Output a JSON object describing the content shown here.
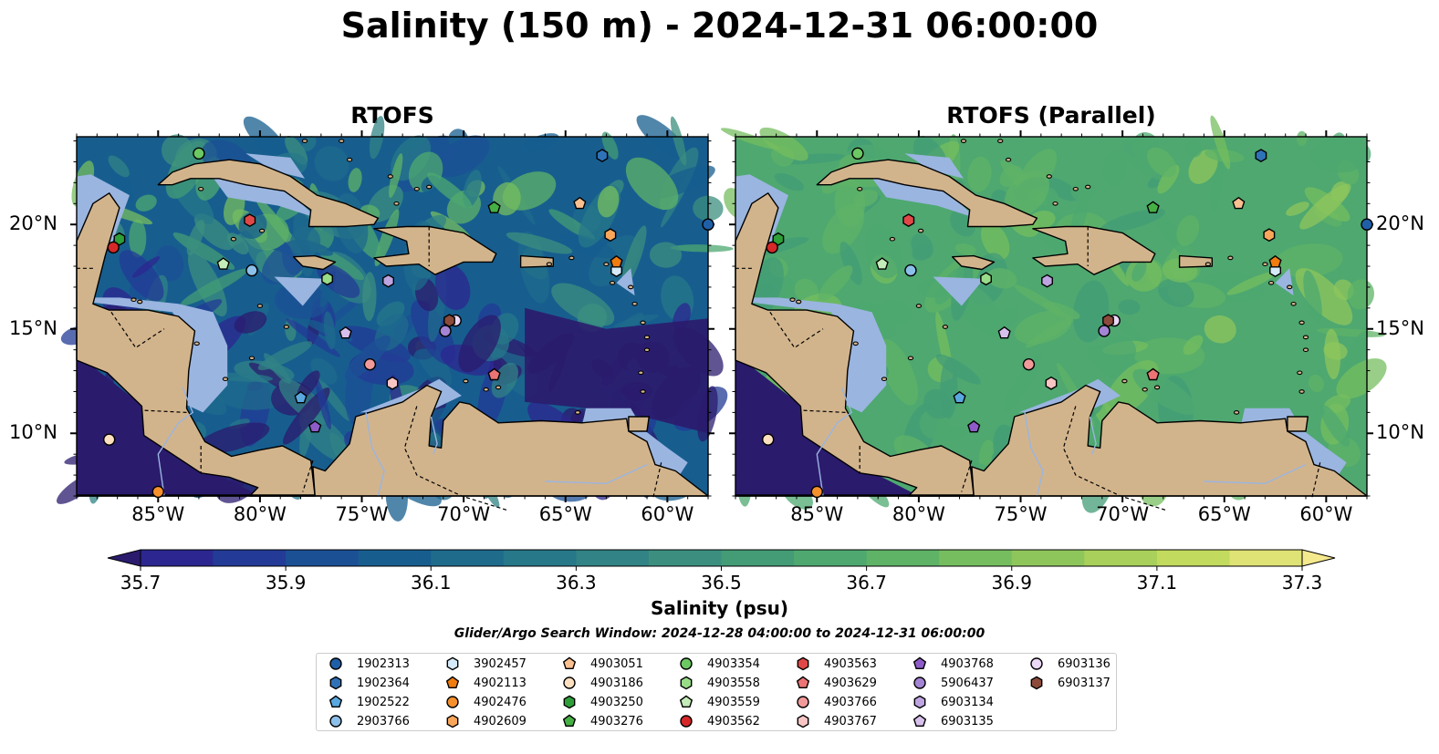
{
  "title": "Salinity (150 m) - 2024-12-31 06:00:00",
  "panels": [
    {
      "title": "RTOFS"
    },
    {
      "title": "RTOFS (Parallel)"
    }
  ],
  "map": {
    "lon_range": [
      -89,
      -58
    ],
    "lat_range": [
      7,
      24.2
    ],
    "lon_ticks": [
      -85,
      -80,
      -75,
      -70,
      -65,
      -60
    ],
    "lon_tick_labels": [
      "85°W",
      "80°W",
      "75°W",
      "70°W",
      "65°W",
      "60°W"
    ],
    "lat_ticks": [
      10,
      15,
      20
    ],
    "lat_tick_labels": [
      "10°N",
      "15°N",
      "20°N"
    ],
    "colors": {
      "land": "#d2b48c",
      "shelf": "#9ab5e0",
      "coast": "#000000"
    }
  },
  "colorbar": {
    "label": "Salinity (psu)",
    "range": [
      35.6,
      37.4
    ],
    "extend": "both",
    "ticks": [
      35.7,
      35.9,
      36.1,
      36.3,
      36.5,
      36.7,
      36.9,
      37.1,
      37.3
    ],
    "tick_labels": [
      "35.7",
      "35.9",
      "36.1",
      "36.3",
      "36.5",
      "36.7",
      "36.9",
      "37.1",
      "37.3"
    ],
    "colors": [
      "#2b1b6d",
      "#2c2790",
      "#233b96",
      "#1c5095",
      "#175e8f",
      "#1f6b8c",
      "#277889",
      "#328385",
      "#3c8f7f",
      "#439c76",
      "#4ea870",
      "#5fb367",
      "#76bd5f",
      "#8fc65c",
      "#a8d05a",
      "#c2da5d",
      "#dfe275",
      "#f5e98e"
    ]
  },
  "search_window": "Glider/Argo Search Window: 2024-12-28 04:00:00 to 2024-12-31 06:00:00",
  "legend": [
    {
      "id": "1902313",
      "marker": "circle",
      "color": "#1f5fa8",
      "lon": -58,
      "lat": 20
    },
    {
      "id": "1902364",
      "marker": "hexagon",
      "color": "#2f72b8",
      "lon": -63.2,
      "lat": 23.3
    },
    {
      "id": "1902522",
      "marker": "pentagon",
      "color": "#5aa8e0",
      "lon": -78,
      "lat": 11.7
    },
    {
      "id": "2903766",
      "marker": "circle",
      "color": "#8cc0ea",
      "lon": -80.4,
      "lat": 17.8
    },
    {
      "id": "3902457",
      "marker": "hexagon",
      "color": "#d4eaf8",
      "lon": -62.5,
      "lat": 17.8
    },
    {
      "id": "4902113",
      "marker": "pentagon",
      "color": "#f07c10",
      "lon": -62.5,
      "lat": 18.2
    },
    {
      "id": "4902476",
      "marker": "circle",
      "color": "#f5902c",
      "lon": -85,
      "lat": 7.2
    },
    {
      "id": "4902609",
      "marker": "hexagon",
      "color": "#f8a65a",
      "lon": -62.8,
      "lat": 19.5
    },
    {
      "id": "4903051",
      "marker": "pentagon",
      "color": "#fac090",
      "lon": -64.3,
      "lat": 21
    },
    {
      "id": "4903186",
      "marker": "circle",
      "color": "#fde0c0",
      "lon": -87.4,
      "lat": 9.7
    },
    {
      "id": "4903250",
      "marker": "hexagon",
      "color": "#2e9e38",
      "lon": -86.9,
      "lat": 19.3
    },
    {
      "id": "4903276",
      "marker": "pentagon",
      "color": "#46b044",
      "lon": -68.5,
      "lat": 20.8
    },
    {
      "id": "4903354",
      "marker": "circle",
      "color": "#6cc862",
      "lon": -83,
      "lat": 23.4
    },
    {
      "id": "4903558",
      "marker": "hexagon",
      "color": "#98dc88",
      "lon": -76.7,
      "lat": 17.4
    },
    {
      "id": "4903559",
      "marker": "pentagon",
      "color": "#c4ecb8",
      "lon": -81.8,
      "lat": 18.1
    },
    {
      "id": "4903562",
      "marker": "circle",
      "color": "#d62828",
      "lon": -87.2,
      "lat": 18.9
    },
    {
      "id": "4903563",
      "marker": "hexagon",
      "color": "#e04848",
      "lon": -80.5,
      "lat": 20.2
    },
    {
      "id": "4903629",
      "marker": "pentagon",
      "color": "#ec7474",
      "lon": -68.5,
      "lat": 12.8
    },
    {
      "id": "4903766",
      "marker": "circle",
      "color": "#f29a9a",
      "lon": -74.6,
      "lat": 13.3
    },
    {
      "id": "4903767",
      "marker": "hexagon",
      "color": "#f8c4c4",
      "lon": -73.5,
      "lat": 12.4
    },
    {
      "id": "4903768",
      "marker": "pentagon",
      "color": "#8e5cc8",
      "lon": -77.3,
      "lat": 10.3
    },
    {
      "id": "5906437",
      "marker": "circle",
      "color": "#a484d4",
      "lon": -70.9,
      "lat": 14.9
    },
    {
      "id": "6903134",
      "marker": "hexagon",
      "color": "#bea4e0",
      "lon": -73.7,
      "lat": 17.3
    },
    {
      "id": "6903135",
      "marker": "pentagon",
      "color": "#d8c0ec",
      "lon": -75.8,
      "lat": 14.8
    },
    {
      "id": "6903136",
      "marker": "circle",
      "color": "#ecd8f6",
      "lon": -70.4,
      "lat": 15.4
    },
    {
      "id": "6903137",
      "marker": "hexagon",
      "color": "#8b4a3a",
      "lon": -70.7,
      "lat": 15.4
    }
  ]
}
